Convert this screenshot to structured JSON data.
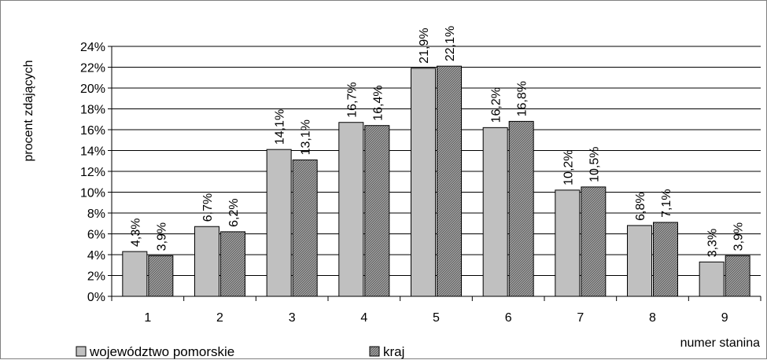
{
  "chart_data": {
    "type": "bar",
    "ylabel": "procent zdających",
    "xlabel": "numer stanina",
    "categories": [
      "1",
      "2",
      "3",
      "4",
      "5",
      "6",
      "7",
      "8",
      "9"
    ],
    "series": [
      {
        "name": "województwo pomorskie",
        "values": [
          4.3,
          6.7,
          14.1,
          16.7,
          21.9,
          16.2,
          10.2,
          6.8,
          3.3
        ],
        "labels": [
          "4,3%",
          "6,7%",
          "14,1%",
          "16,7%",
          "21,9%",
          "16,2%",
          "10,2%",
          "6,8%",
          "3,3%"
        ],
        "color": "#c0c0c0"
      },
      {
        "name": "kraj",
        "values": [
          3.9,
          6.2,
          13.1,
          16.4,
          22.1,
          16.8,
          10.5,
          7.1,
          3.9
        ],
        "labels": [
          "3,9%",
          "6,2%",
          "13,1%",
          "16,4%",
          "22,1%",
          "16,8%",
          "10,5%",
          "7,1%",
          "3,9%"
        ],
        "color": "#808080"
      }
    ],
    "ylim": [
      0,
      24
    ],
    "yticks": [
      "0%",
      "2%",
      "4%",
      "6%",
      "8%",
      "10%",
      "12%",
      "14%",
      "16%",
      "18%",
      "20%",
      "22%",
      "24%"
    ],
    "grid": true,
    "legend": "bottom-left"
  }
}
